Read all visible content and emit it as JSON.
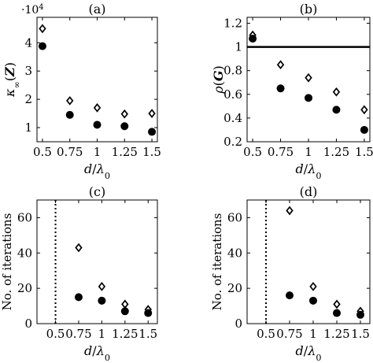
{
  "chart_data": [
    {
      "type": "scatter",
      "title": "(a)",
      "xlabel": "d/λ0",
      "ylabel": "κ∞(Z)",
      "y_multiplier": "·10^4",
      "x_ticks": [
        "0.5",
        "0.75",
        "1",
        "1.25",
        "1.5"
      ],
      "y_ticks": [
        "1",
        "2",
        "3",
        "4"
      ],
      "xlim": [
        0.45,
        1.55
      ],
      "ylim": [
        0.5,
        4.9
      ],
      "x": [
        0.5,
        0.75,
        1,
        1.25,
        1.5
      ],
      "series": [
        {
          "marker": "diamond-open",
          "values": [
            4.5,
            1.95,
            1.7,
            1.48,
            1.5
          ]
        },
        {
          "marker": "circle-filled",
          "values": [
            3.88,
            1.45,
            1.1,
            1.05,
            0.85
          ]
        }
      ],
      "grid": false
    },
    {
      "type": "scatter",
      "title": "(b)",
      "xlabel": "d/λ0",
      "ylabel": "ρ(G)",
      "x_ticks": [
        "0.5",
        "0.75",
        "1",
        "1.25",
        "1.5"
      ],
      "y_ticks": [
        "0.2",
        "0.4",
        "0.6",
        "0.8",
        "1",
        "1.2"
      ],
      "xlim": [
        0.45,
        1.55
      ],
      "ylim": [
        0.2,
        1.25
      ],
      "x": [
        0.5,
        0.75,
        1,
        1.25,
        1.5
      ],
      "series": [
        {
          "marker": "diamond-open",
          "values": [
            1.1,
            0.85,
            0.74,
            0.62,
            0.47
          ]
        },
        {
          "marker": "circle-filled",
          "values": [
            1.07,
            0.65,
            0.57,
            0.47,
            0.3
          ]
        }
      ],
      "reference_line": {
        "orientation": "horizontal",
        "y": 1,
        "style": "solid"
      },
      "grid": false
    },
    {
      "type": "scatter",
      "title": "(c)",
      "xlabel": "d/λ0",
      "ylabel": "No. of iterations",
      "x_ticks": [
        "0.5",
        "0.75",
        "1",
        "1.25",
        "1.5"
      ],
      "y_ticks": [
        "0",
        "20",
        "40",
        "60"
      ],
      "xlim": [
        0.3,
        1.6
      ],
      "ylim": [
        0,
        70
      ],
      "x": [
        0.75,
        1,
        1.25,
        1.5
      ],
      "series": [
        {
          "marker": "diamond-open",
          "values": [
            43,
            21,
            11,
            8
          ]
        },
        {
          "marker": "circle-filled",
          "values": [
            15,
            13,
            7,
            6
          ]
        }
      ],
      "reference_line": {
        "orientation": "vertical",
        "x": 0.5,
        "style": "dotted"
      },
      "grid": false
    },
    {
      "type": "scatter",
      "title": "(d)",
      "xlabel": "d/λ0",
      "ylabel": "No. of iterations",
      "x_ticks": [
        "0.5",
        "0.75",
        "1",
        "1.25",
        "1.5"
      ],
      "y_ticks": [
        "0",
        "20",
        "40",
        "60"
      ],
      "xlim": [
        0.3,
        1.6
      ],
      "ylim": [
        0,
        70
      ],
      "x": [
        0.75,
        1,
        1.25,
        1.5
      ],
      "series": [
        {
          "marker": "diamond-open",
          "values": [
            64,
            21,
            11,
            7
          ]
        },
        {
          "marker": "circle-filled",
          "values": [
            16,
            13,
            6,
            5
          ]
        }
      ],
      "reference_line": {
        "orientation": "vertical",
        "x": 0.5,
        "style": "dotted"
      },
      "grid": false
    }
  ]
}
